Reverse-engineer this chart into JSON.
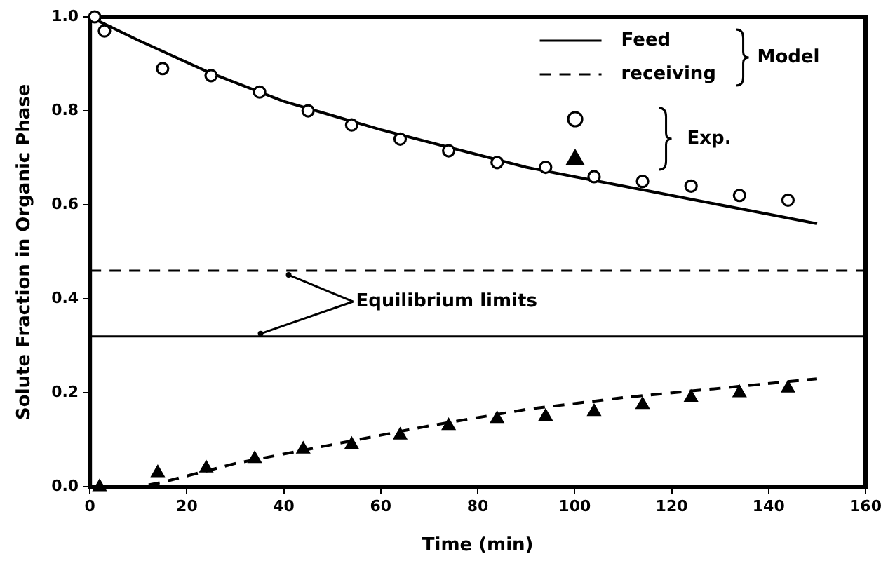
{
  "chart_data": {
    "type": "line",
    "xlabel": "Time (min)",
    "ylabel": "Solute Fraction in Organic Phase",
    "xlim": [
      0,
      160
    ],
    "xticks": [
      0,
      20,
      40,
      60,
      80,
      100,
      120,
      140,
      160
    ],
    "ylim": [
      0,
      1
    ],
    "yticks": [
      {
        "value": 0,
        "label": "0.0"
      },
      0.2,
      0.4,
      0.6,
      0.8,
      {
        "value": 1,
        "label": "1.0"
      }
    ],
    "grid": false,
    "legend": "top right",
    "annotations": [
      "Model",
      "Exp.",
      {
        "text": "Equilibrium limits",
        "x": 41,
        "y": 0.46
      }
    ],
    "ref_lines": [
      {
        "axis": "y",
        "value": 0.46,
        "line_style": "dashed",
        "color": "#000000"
      },
      {
        "axis": "y",
        "value": 0.32,
        "line_style": "solid",
        "color": "#000000"
      }
    ],
    "series": [
      {
        "name": "Feed",
        "color": "#000000",
        "line_style": "solid",
        "marker": "none",
        "x": [
          0,
          10,
          25,
          40,
          50,
          60,
          75,
          90,
          100,
          115,
          125,
          140,
          150
        ],
        "values": [
          1,
          0.95,
          0.88,
          0.82,
          0.79,
          0.76,
          0.72,
          0.68,
          0.66,
          0.63,
          0.61,
          0.58,
          0.56
        ]
      },
      {
        "name": "receiving",
        "color": "#000000",
        "line_style": "dashed",
        "marker": "none",
        "x": [
          0,
          10,
          15,
          30,
          50,
          70,
          90,
          110,
          130,
          150
        ],
        "values": [
          0,
          0,
          0.01,
          0.05,
          0.09,
          0.13,
          0.165,
          0.19,
          0.21,
          0.23
        ]
      },
      {
        "type": "scatter",
        "color": "#000000",
        "marker": "circle",
        "x": [
          1,
          3,
          15,
          25,
          35,
          45,
          54,
          64,
          74,
          84,
          94,
          104,
          114,
          124,
          134,
          144
        ],
        "values": [
          1,
          0.97,
          0.89,
          0.875,
          0.84,
          0.8,
          0.77,
          0.74,
          0.715,
          0.69,
          0.68,
          0.66,
          0.65,
          0.64,
          0.62,
          0.61
        ]
      },
      {
        "type": "scatter",
        "color": "#000000",
        "marker": "triangle",
        "x": [
          2,
          14,
          24,
          34,
          44,
          54,
          64,
          74,
          84,
          94,
          104,
          114,
          124,
          134,
          144
        ],
        "values": [
          0,
          0.03,
          0.04,
          0.06,
          0.08,
          0.09,
          0.11,
          0.13,
          0.145,
          0.15,
          0.16,
          0.175,
          0.19,
          0.2,
          0.21
        ]
      }
    ]
  }
}
